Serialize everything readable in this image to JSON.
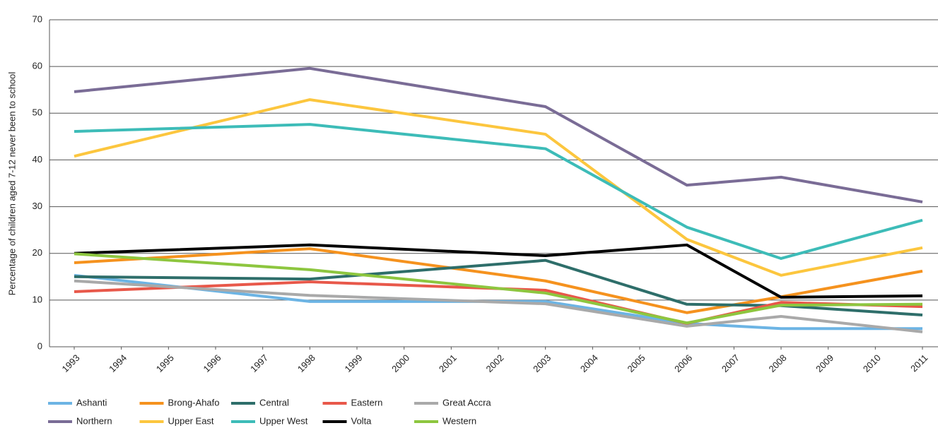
{
  "chart_data": {
    "type": "line",
    "y_label": "Percentage of children aged 7-12  never been to school",
    "x": [
      1993,
      1998,
      2003,
      2006,
      2008,
      2011
    ],
    "xlim": [
      1993,
      2011
    ],
    "xticks": [
      1993,
      1994,
      1995,
      1996,
      1997,
      1998,
      1999,
      2000,
      2001,
      2002,
      2003,
      2004,
      2005,
      2006,
      2007,
      2008,
      2009,
      2010,
      2011
    ],
    "ylim": [
      0,
      70
    ],
    "yticks": [
      0,
      10,
      20,
      30,
      40,
      50,
      60,
      70
    ],
    "grid": true,
    "legend": "bottom",
    "series": [
      {
        "name": "Ashanti",
        "color": "#6cb4e4",
        "values": [
          15.3,
          9.7,
          9.7,
          5.0,
          3.9,
          3.9
        ]
      },
      {
        "name": "Brong-Ahafo",
        "color": "#f5921e",
        "values": [
          18.0,
          21.0,
          14.1,
          7.3,
          10.7,
          16.2
        ]
      },
      {
        "name": "Central",
        "color": "#2e6e6a",
        "values": [
          15.0,
          14.5,
          18.5,
          9.1,
          8.8,
          6.8
        ]
      },
      {
        "name": "Eastern",
        "color": "#e8584a",
        "values": [
          11.8,
          13.9,
          12.1,
          5.0,
          9.5,
          8.6
        ]
      },
      {
        "name": "Great Accra",
        "color": "#a9a9a9",
        "values": [
          14.1,
          11.0,
          9.2,
          4.4,
          6.5,
          3.2
        ]
      },
      {
        "name": "Northern",
        "color": "#7a6c96",
        "values": [
          54.6,
          59.6,
          51.4,
          34.6,
          36.3,
          31.0
        ]
      },
      {
        "name": "Upper East",
        "color": "#fcc63e",
        "values": [
          40.8,
          52.9,
          45.5,
          23.0,
          15.3,
          21.2
        ]
      },
      {
        "name": "Upper West",
        "color": "#3dbcb8",
        "values": [
          46.1,
          47.6,
          42.4,
          25.6,
          18.9,
          27.1
        ]
      },
      {
        "name": "Volta",
        "color": "#000000",
        "values": [
          20.0,
          21.8,
          19.5,
          21.8,
          10.6,
          10.9
        ]
      },
      {
        "name": "Western",
        "color": "#8dc63f",
        "values": [
          19.9,
          16.5,
          11.5,
          5.1,
          8.9,
          9.1
        ]
      }
    ]
  }
}
